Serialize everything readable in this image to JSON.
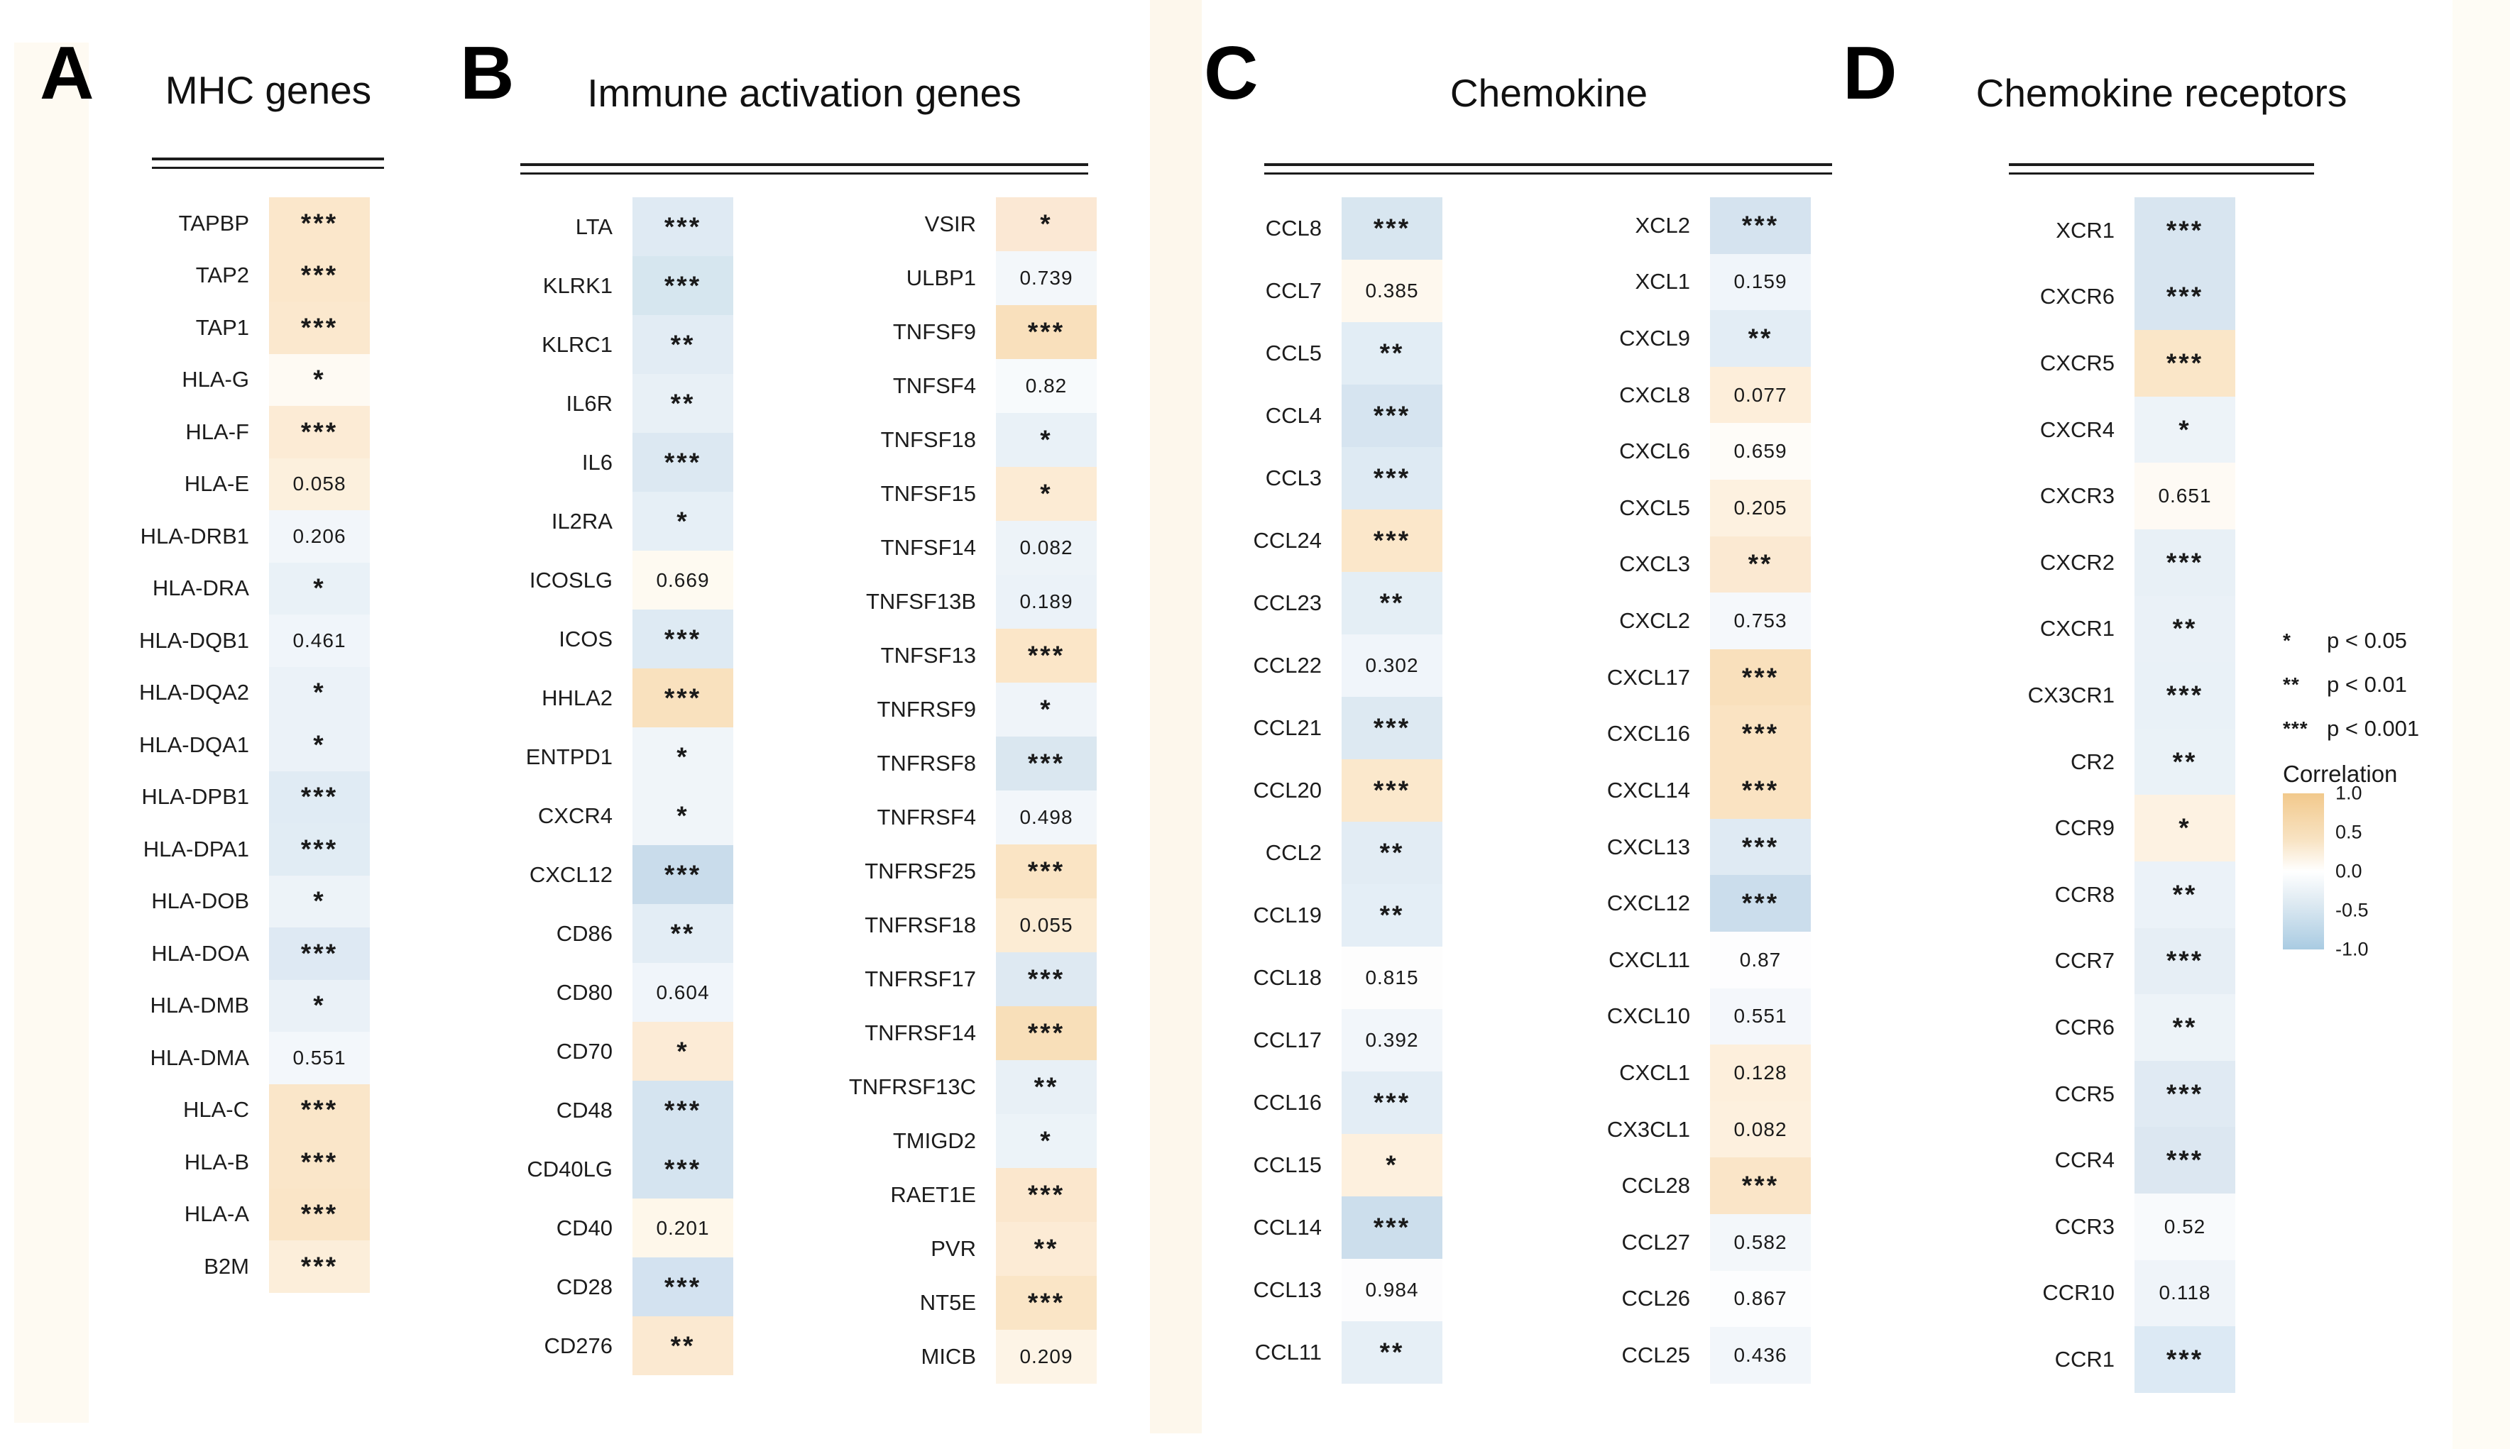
{
  "chart_data": {
    "type": "heatmap",
    "legend_position": "right",
    "value_encoding": "cell color = correlation (orange positive, blue negative); cell text = significance stars or p-value",
    "panels": [
      {
        "id": "A",
        "title": "MHC genes",
        "columns": [
          [
            {
              "gene": "TAPBP",
              "label": "***",
              "color": "#FBE7CB"
            },
            {
              "gene": "TAP2",
              "label": "***",
              "color": "#FBE7CB"
            },
            {
              "gene": "TAP1",
              "label": "***",
              "color": "#FBE8CE"
            },
            {
              "gene": "HLA-G",
              "label": "*",
              "color": "#FEFAF3"
            },
            {
              "gene": "HLA-F",
              "label": "***",
              "color": "#FCEBD5"
            },
            {
              "gene": "HLA-E",
              "label": "0.058",
              "color": "#FCF0DD"
            },
            {
              "gene": "HLA-DRB1",
              "label": "0.206",
              "color": "#F2F6FA"
            },
            {
              "gene": "HLA-DRA",
              "label": "*",
              "color": "#E9F1F7"
            },
            {
              "gene": "HLA-DQB1",
              "label": "0.461",
              "color": "#F0F5FA"
            },
            {
              "gene": "HLA-DQA2",
              "label": "*",
              "color": "#EBF2F8"
            },
            {
              "gene": "HLA-DQA1",
              "label": "*",
              "color": "#EBF2F8"
            },
            {
              "gene": "HLA-DPB1",
              "label": "***",
              "color": "#E0EBF4"
            },
            {
              "gene": "HLA-DPA1",
              "label": "***",
              "color": "#E1ECF4"
            },
            {
              "gene": "HLA-DOB",
              "label": "*",
              "color": "#EDF3F8"
            },
            {
              "gene": "HLA-DOA",
              "label": "***",
              "color": "#DEE9F3"
            },
            {
              "gene": "HLA-DMB",
              "label": "*",
              "color": "#EAF1F7"
            },
            {
              "gene": "HLA-DMA",
              "label": "0.551",
              "color": "#F3F7FB"
            },
            {
              "gene": "HLA-C",
              "label": "***",
              "color": "#FAE6C9"
            },
            {
              "gene": "HLA-B",
              "label": "***",
              "color": "#FAE6C9"
            },
            {
              "gene": "HLA-A",
              "label": "***",
              "color": "#FAE5C7"
            },
            {
              "gene": "B2M",
              "label": "***",
              "color": "#FCEEDA"
            }
          ]
        ]
      },
      {
        "id": "B",
        "title": "Immune activation genes",
        "columns": [
          [
            {
              "gene": "LTA",
              "label": "***",
              "color": "#DFEAF3"
            },
            {
              "gene": "KLRK1",
              "label": "***",
              "color": "#D6E6EF"
            },
            {
              "gene": "KLRC1",
              "label": "**",
              "color": "#E2ECF4"
            },
            {
              "gene": "IL6R",
              "label": "**",
              "color": "#E8F0F6"
            },
            {
              "gene": "IL6",
              "label": "***",
              "color": "#DCE8F2"
            },
            {
              "gene": "IL2RA",
              "label": "*",
              "color": "#E6EFF6"
            },
            {
              "gene": "ICOSLG",
              "label": "0.669",
              "color": "#FEFAF1"
            },
            {
              "gene": "ICOS",
              "label": "***",
              "color": "#DEEAF3"
            },
            {
              "gene": "HHLA2",
              "label": "***",
              "color": "#F9E1BE"
            },
            {
              "gene": "ENTPD1",
              "label": "*",
              "color": "#F0F5F9"
            },
            {
              "gene": "CXCR4",
              "label": "*",
              "color": "#F0F5F9"
            },
            {
              "gene": "CXCL12",
              "label": "***",
              "color": "#C9DCEB"
            },
            {
              "gene": "CD86",
              "label": "**",
              "color": "#E3EDF5"
            },
            {
              "gene": "CD80",
              "label": "0.604",
              "color": "#F0F5FA"
            },
            {
              "gene": "CD70",
              "label": "*",
              "color": "#FCEBD6"
            },
            {
              "gene": "CD48",
              "label": "***",
              "color": "#D5E4F0"
            },
            {
              "gene": "CD40LG",
              "label": "***",
              "color": "#D5E4F0"
            },
            {
              "gene": "CD40",
              "label": "0.201",
              "color": "#FEF7EA"
            },
            {
              "gene": "CD28",
              "label": "***",
              "color": "#D3E2F0"
            },
            {
              "gene": "CD276",
              "label": "**",
              "color": "#FBE9D1"
            }
          ],
          [
            {
              "gene": "VSIR",
              "label": "*",
              "color": "#FBE8D4"
            },
            {
              "gene": "ULBP1",
              "label": "0.739",
              "color": "#F3F7FA"
            },
            {
              "gene": "TNFSF9",
              "label": "***",
              "color": "#F9E0BC"
            },
            {
              "gene": "TNFSF4",
              "label": "0.82",
              "color": "#F7FAFC"
            },
            {
              "gene": "TNFSF18",
              "label": "*",
              "color": "#E9F1F7"
            },
            {
              "gene": "TNFSF15",
              "label": "*",
              "color": "#FCEBD4"
            },
            {
              "gene": "TNFSF14",
              "label": "0.082",
              "color": "#EDF3F8"
            },
            {
              "gene": "TNFSF13B",
              "label": "0.189",
              "color": "#EBF2F8"
            },
            {
              "gene": "TNFSF13",
              "label": "***",
              "color": "#FBE6C8"
            },
            {
              "gene": "TNFRSF9",
              "label": "*",
              "color": "#EFF4F9"
            },
            {
              "gene": "TNFRSF8",
              "label": "***",
              "color": "#DAE7F0"
            },
            {
              "gene": "TNFRSF4",
              "label": "0.498",
              "color": "#F2F6FA"
            },
            {
              "gene": "TNFRSF25",
              "label": "***",
              "color": "#FAE4C4"
            },
            {
              "gene": "TNFRSF18",
              "label": "0.055",
              "color": "#FCECD4"
            },
            {
              "gene": "TNFRSF17",
              "label": "***",
              "color": "#DEE9F2"
            },
            {
              "gene": "TNFRSF14",
              "label": "***",
              "color": "#F8DFB9"
            },
            {
              "gene": "TNFRSF13C",
              "label": "**",
              "color": "#E8F0F6"
            },
            {
              "gene": "TMIGD2",
              "label": "*",
              "color": "#ECF3F8"
            },
            {
              "gene": "RAET1E",
              "label": "***",
              "color": "#FBE7CD"
            },
            {
              "gene": "PVR",
              "label": "**",
              "color": "#FCEBD5"
            },
            {
              "gene": "NT5E",
              "label": "***",
              "color": "#FAE5C6"
            },
            {
              "gene": "MICB",
              "label": "0.209",
              "color": "#FDF4E6"
            }
          ]
        ]
      },
      {
        "id": "C",
        "title": "Chemokine",
        "columns": [
          [
            {
              "gene": "CCL8",
              "label": "***",
              "color": "#D8E6F0"
            },
            {
              "gene": "CCL7",
              "label": "0.385",
              "color": "#FEF8EE"
            },
            {
              "gene": "CCL5",
              "label": "**",
              "color": "#E2EDF5"
            },
            {
              "gene": "CCL4",
              "label": "***",
              "color": "#D6E4F0"
            },
            {
              "gene": "CCL3",
              "label": "***",
              "color": "#DEEAF3"
            },
            {
              "gene": "CCL24",
              "label": "***",
              "color": "#FBE7CA"
            },
            {
              "gene": "CCL23",
              "label": "**",
              "color": "#E4EEF5"
            },
            {
              "gene": "CCL22",
              "label": "0.302",
              "color": "#F0F5FA"
            },
            {
              "gene": "CCL21",
              "label": "***",
              "color": "#DDE9F2"
            },
            {
              "gene": "CCL20",
              "label": "***",
              "color": "#FBE8CC"
            },
            {
              "gene": "CCL2",
              "label": "**",
              "color": "#E2ECF4"
            },
            {
              "gene": "CCL19",
              "label": "**",
              "color": "#E4EEF6"
            },
            {
              "gene": "CCL18",
              "label": "0.815",
              "color": "#FDFDFD"
            },
            {
              "gene": "CCL17",
              "label": "0.392",
              "color": "#F2F6FA"
            },
            {
              "gene": "CCL16",
              "label": "***",
              "color": "#E3EDF5"
            },
            {
              "gene": "CCL15",
              "label": "*",
              "color": "#FDF0DE"
            },
            {
              "gene": "CCL14",
              "label": "***",
              "color": "#CCDEEC"
            },
            {
              "gene": "CCL13",
              "label": "0.984",
              "color": "#FCFCFD"
            },
            {
              "gene": "CCL11",
              "label": "**",
              "color": "#E6EFF6"
            }
          ],
          [
            {
              "gene": "XCL2",
              "label": "***",
              "color": "#D5E3EF"
            },
            {
              "gene": "XCL1",
              "label": "0.159",
              "color": "#F0F5FA"
            },
            {
              "gene": "CXCL9",
              "label": "**",
              "color": "#E3EDF5"
            },
            {
              "gene": "CXCL8",
              "label": "0.077",
              "color": "#FDEEDA"
            },
            {
              "gene": "CXCL6",
              "label": "0.659",
              "color": "#FEFCF8"
            },
            {
              "gene": "CXCL5",
              "label": "0.205",
              "color": "#FDF1E0"
            },
            {
              "gene": "CXCL3",
              "label": "**",
              "color": "#FBE9D2"
            },
            {
              "gene": "CXCL2",
              "label": "0.753",
              "color": "#F5F8FB"
            },
            {
              "gene": "CXCL17",
              "label": "***",
              "color": "#F9E0BC"
            },
            {
              "gene": "CXCL16",
              "label": "***",
              "color": "#FAE3C2"
            },
            {
              "gene": "CXCL14",
              "label": "***",
              "color": "#FAE3C2"
            },
            {
              "gene": "CXCL13",
              "label": "***",
              "color": "#DFEAF3"
            },
            {
              "gene": "CXCL12",
              "label": "***",
              "color": "#CBDDEC"
            },
            {
              "gene": "CXCL11",
              "label": "0.87",
              "color": "#FDFDFE"
            },
            {
              "gene": "CXCL10",
              "label": "0.551",
              "color": "#F4F7FB"
            },
            {
              "gene": "CXCL1",
              "label": "0.128",
              "color": "#FDEFDC"
            },
            {
              "gene": "CX3CL1",
              "label": "0.082",
              "color": "#FDF0DE"
            },
            {
              "gene": "CCL28",
              "label": "***",
              "color": "#FAE5C8"
            },
            {
              "gene": "CCL27",
              "label": "0.582",
              "color": "#F3F7FA"
            },
            {
              "gene": "CCL26",
              "label": "0.867",
              "color": "#FCFDFE"
            },
            {
              "gene": "CCL25",
              "label": "0.436",
              "color": "#F2F6FA"
            }
          ]
        ]
      },
      {
        "id": "D",
        "title": "Chemokine receptors",
        "columns": [
          [
            {
              "gene": "XCR1",
              "label": "***",
              "color": "#D8E5F0"
            },
            {
              "gene": "CXCR6",
              "label": "***",
              "color": "#D8E5F0"
            },
            {
              "gene": "CXCR5",
              "label": "***",
              "color": "#FAE6C8"
            },
            {
              "gene": "CXCR4",
              "label": "*",
              "color": "#EDF3F8"
            },
            {
              "gene": "CXCR3",
              "label": "0.651",
              "color": "#FEFAF4"
            },
            {
              "gene": "CXCR2",
              "label": "***",
              "color": "#E8F0F6"
            },
            {
              "gene": "CXCR1",
              "label": "**",
              "color": "#EAF1F7"
            },
            {
              "gene": "CX3CR1",
              "label": "***",
              "color": "#E9F1F7"
            },
            {
              "gene": "CR2",
              "label": "**",
              "color": "#EAF2F7"
            },
            {
              "gene": "CCR9",
              "label": "*",
              "color": "#FDF2E2"
            },
            {
              "gene": "CCR8",
              "label": "**",
              "color": "#EBF2F8"
            },
            {
              "gene": "CCR7",
              "label": "***",
              "color": "#E6EEF5"
            },
            {
              "gene": "CCR6",
              "label": "**",
              "color": "#EDF3F8"
            },
            {
              "gene": "CCR5",
              "label": "***",
              "color": "#E0EAF3"
            },
            {
              "gene": "CCR4",
              "label": "***",
              "color": "#DCE7F1"
            },
            {
              "gene": "CCR3",
              "label": "0.52",
              "color": "#F8FAFC"
            },
            {
              "gene": "CCR10",
              "label": "0.118",
              "color": "#EFF4F9"
            },
            {
              "gene": "CCR1",
              "label": "***",
              "color": "#DCE9F4"
            }
          ]
        ]
      }
    ],
    "legend": {
      "significance": [
        {
          "stars": "*",
          "label": "p < 0.05"
        },
        {
          "stars": "**",
          "label": "p < 0.01"
        },
        {
          "stars": "***",
          "label": "p < 0.001"
        }
      ],
      "colorbar": {
        "title": "Correlation",
        "ticks": [
          "1.0",
          "0.5",
          "0.0",
          "-0.5",
          "-1.0"
        ],
        "top_color": "#F2C98C",
        "mid_color": "#FFFFFF",
        "bottom_color": "#A9CBE2"
      }
    }
  }
}
